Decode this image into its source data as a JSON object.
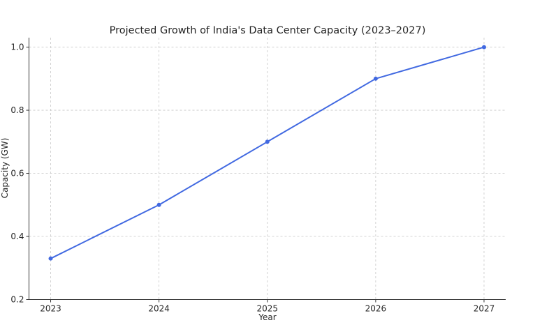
{
  "chart_data": {
    "type": "line",
    "title": "Projected Growth of India's Data Center Capacity (2023–2027)",
    "xlabel": "Year",
    "ylabel": "Capacity (GW)",
    "categories": [
      "2023",
      "2024",
      "2025",
      "2026",
      "2027"
    ],
    "x": [
      2023,
      2024,
      2025,
      2026,
      2027
    ],
    "series": [
      {
        "name": "Capacity (GW)",
        "values": [
          0.33,
          0.5,
          0.7,
          0.9,
          1.0
        ],
        "color": "#4169e1",
        "marker": "circle"
      }
    ],
    "xlim": [
      2022.8,
      2027.2
    ],
    "ylim": [
      0.2,
      1.03
    ],
    "yticks": [
      0.2,
      0.4,
      0.6,
      0.8,
      1.0
    ],
    "ytick_labels": [
      "0.2",
      "0.4",
      "0.6",
      "0.8",
      "1.0"
    ],
    "grid": true,
    "legend": "none"
  }
}
